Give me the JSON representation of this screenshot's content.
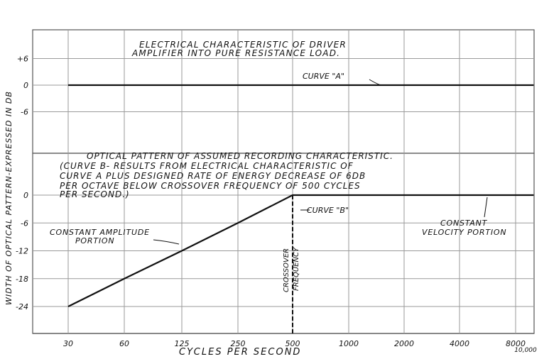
{
  "chart_data": {
    "type": "line",
    "ylabel": "WIDTH OF OPTICAL PATTERN-EXPRESSED IN DB",
    "xlabel": "CYCLES PER SECOND",
    "x_scale": "log",
    "x_ticks": [
      "30",
      "60",
      "125",
      "250",
      "500",
      "1000",
      "2000",
      "4000",
      "8000",
      "10,000"
    ],
    "upper_panel": {
      "title": "ELECTRICAL CHARACTERISTIC OF DRIVER AMPLIFIER INTO PURE RESISTANCE LOAD.",
      "y_ticks": [
        "+6",
        "0",
        "-6"
      ],
      "ylim": [
        -12,
        12
      ],
      "series": [
        {
          "name": "CURVE \"A\"",
          "x": [
            30,
            10000
          ],
          "y": [
            0,
            0
          ]
        }
      ]
    },
    "lower_panel": {
      "title_lines": [
        "OPTICAL PATTERN OF ASSUMED RECORDING CHARACTERISTIC.",
        "(CURVE B- RESULTS FROM ELECTRICAL CHARACTERISTIC OF",
        "CURVE A PLUS DESIGNED RATE OF ENERGY DECREASE OF 6DB",
        "PER OCTAVE BELOW CROSSOVER FREQUENCY OF 500 CYCLES",
        "PER SECOND.)"
      ],
      "y_ticks": [
        "0",
        "-6",
        "-12",
        "-18",
        "-24"
      ],
      "ylim": [
        -30,
        0
      ],
      "series": [
        {
          "name": "CURVE \"B\"",
          "x": [
            30,
            60,
            125,
            250,
            500,
            10000
          ],
          "y": [
            -24,
            -18,
            -12,
            -6,
            0,
            0
          ]
        }
      ],
      "annotations": {
        "crossover": "CROSSOVER FREQUENCY",
        "constant_amplitude": "CONSTANT AMPLITUDE PORTION",
        "constant_velocity": "CONSTANT VELOCITY PORTION"
      }
    },
    "grid": true
  }
}
